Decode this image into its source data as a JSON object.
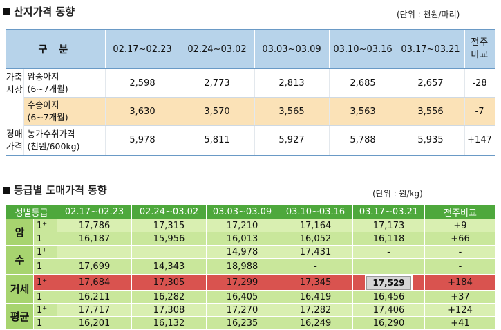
{
  "section1": {
    "title": "산지가격 동향",
    "unit": "(단위 : 천원/마리)",
    "headers": [
      "구 분",
      "02.17~02.23",
      "02.24~03.02",
      "03.03~03.09",
      "03.10~03.16",
      "03.17~03.21",
      "전주\n비교"
    ],
    "group1": "가축\n시장",
    "group2": "경매\n가격",
    "rows": [
      {
        "item": "암송아지\n(6~7개월)",
        "values": [
          "2,598",
          "2,773",
          "2,813",
          "2,685",
          "2,657"
        ],
        "comp": "-28"
      },
      {
        "item": "수송아지\n(6~7개월)",
        "values": [
          "3,630",
          "3,570",
          "3,565",
          "3,563",
          "3,556"
        ],
        "comp": "-7"
      },
      {
        "item": "농가수취가격\n(천원/600kg)",
        "values": [
          "5,978",
          "5,811",
          "5,927",
          "5,788",
          "5,935"
        ],
        "comp": "+147"
      }
    ]
  },
  "section2": {
    "title": "등급별 도매가격 동향",
    "unit": "(단위 : 원/kg)",
    "headers": [
      "성별등급",
      "02.17~02.23",
      "02.24~03.02",
      "03.03~03.09",
      "03.10~03.16",
      "03.17~03.21",
      "전주비교"
    ],
    "groups": [
      {
        "label": "암",
        "rows": [
          {
            "grade": "1⁺",
            "values": [
              "17,786",
              "17,315",
              "17,210",
              "17,164",
              "17,173"
            ],
            "comp": "+9"
          },
          {
            "grade": "1",
            "values": [
              "16,187",
              "15,956",
              "16,013",
              "16,052",
              "16,118"
            ],
            "comp": "+66"
          }
        ]
      },
      {
        "label": "수",
        "rows": [
          {
            "grade": "1⁺",
            "values": [
              "",
              "",
              "14,978",
              "17,431",
              "-"
            ],
            "comp": "-"
          },
          {
            "grade": "1",
            "values": [
              "17,699",
              "14,343",
              "18,988",
              "-",
              ""
            ],
            "comp": "-"
          }
        ]
      },
      {
        "label": "거세",
        "rows": [
          {
            "grade": "1⁺",
            "values": [
              "17,684",
              "17,305",
              "17,299",
              "17,345",
              "17,529"
            ],
            "comp": "+184"
          },
          {
            "grade": "1",
            "values": [
              "16,211",
              "16,282",
              "16,405",
              "16,419",
              "16,456"
            ],
            "comp": "+37"
          }
        ]
      },
      {
        "label": "평균",
        "rows": [
          {
            "grade": "1⁺",
            "values": [
              "17,717",
              "17,308",
              "17,270",
              "17,282",
              "17,406"
            ],
            "comp": "+124"
          },
          {
            "grade": "1",
            "values": [
              "16,201",
              "16,132",
              "16,235",
              "16,249",
              "16,290"
            ],
            "comp": "+41"
          }
        ]
      }
    ]
  }
}
